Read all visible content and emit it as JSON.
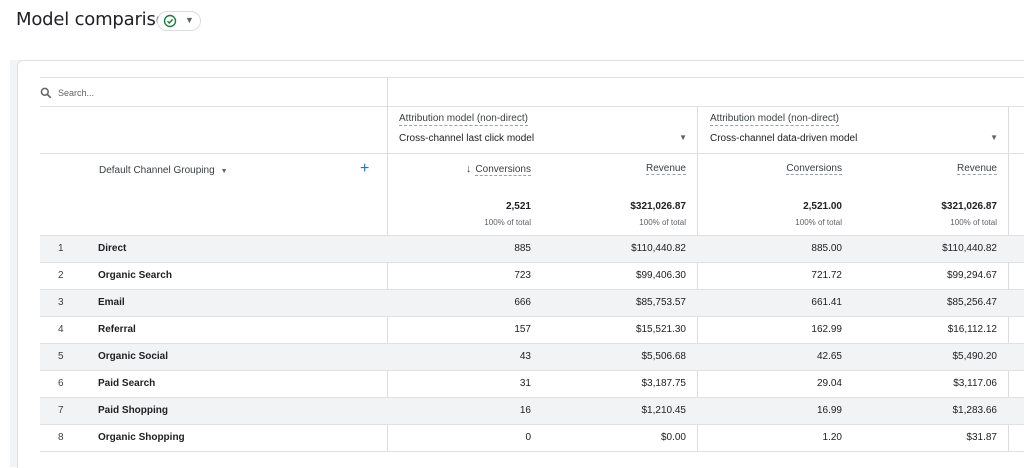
{
  "page": {
    "title": "Model comparison"
  },
  "search": {
    "placeholder": "Search..."
  },
  "columns": {
    "left": {
      "attribution_label": "Attribution model (non-direct)",
      "model": "Cross-channel last click model",
      "conversions_label": "Conversions",
      "revenue_label": "Revenue",
      "total_conversions": "2,521",
      "total_conversions_pct": "100% of total",
      "total_revenue": "$321,026.87",
      "total_revenue_pct": "100% of total"
    },
    "right": {
      "attribution_label": "Attribution model (non-direct)",
      "model": "Cross-channel data-driven model",
      "conversions_label": "Conversions",
      "revenue_label": "Revenue",
      "total_conversions": "2,521.00",
      "total_conversions_pct": "100% of total",
      "total_revenue": "$321,026.87",
      "total_revenue_pct": "100% of total"
    }
  },
  "dimension": {
    "label": "Default Channel Grouping"
  },
  "rows": [
    {
      "idx": "1",
      "name": "Direct",
      "conv_a": "885",
      "rev_a": "$110,440.82",
      "conv_b": "885.00",
      "rev_b": "$110,440.82"
    },
    {
      "idx": "2",
      "name": "Organic Search",
      "conv_a": "723",
      "rev_a": "$99,406.30",
      "conv_b": "721.72",
      "rev_b": "$99,294.67"
    },
    {
      "idx": "3",
      "name": "Email",
      "conv_a": "666",
      "rev_a": "$85,753.57",
      "conv_b": "661.41",
      "rev_b": "$85,256.47"
    },
    {
      "idx": "4",
      "name": "Referral",
      "conv_a": "157",
      "rev_a": "$15,521.30",
      "conv_b": "162.99",
      "rev_b": "$16,112.12"
    },
    {
      "idx": "5",
      "name": "Organic Social",
      "conv_a": "43",
      "rev_a": "$5,506.68",
      "conv_b": "42.65",
      "rev_b": "$5,490.20"
    },
    {
      "idx": "6",
      "name": "Paid Search",
      "conv_a": "31",
      "rev_a": "$3,187.75",
      "conv_b": "29.04",
      "rev_b": "$3,117.06"
    },
    {
      "idx": "7",
      "name": "Paid Shopping",
      "conv_a": "16",
      "rev_a": "$1,210.45",
      "conv_b": "16.99",
      "rev_b": "$1,283.66"
    },
    {
      "idx": "8",
      "name": "Organic Shopping",
      "conv_a": "0",
      "rev_a": "$0.00",
      "conv_b": "1.20",
      "rev_b": "$31.87"
    }
  ],
  "colors": {
    "accent": "#1a73e8",
    "status_ok": "#188038",
    "row_shade": "#f1f3f4"
  }
}
